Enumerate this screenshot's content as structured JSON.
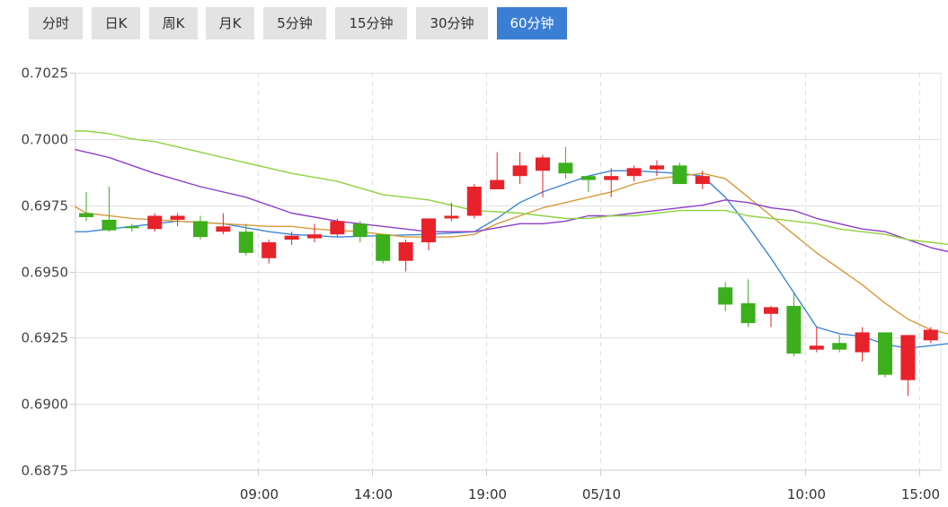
{
  "tabs": [
    {
      "label": "分时",
      "active": false
    },
    {
      "label": "日K",
      "active": false
    },
    {
      "label": "周K",
      "active": false
    },
    {
      "label": "月K",
      "active": false
    },
    {
      "label": "5分钟",
      "active": false
    },
    {
      "label": "15分钟",
      "active": false
    },
    {
      "label": "30分钟",
      "active": false
    },
    {
      "label": "60分钟",
      "active": true
    }
  ],
  "colors": {
    "up": "#e8222a",
    "down": "#3caf1c",
    "ma_blue": "#3f86d6",
    "ma_orange": "#d79a3c",
    "ma_purple": "#8b3fc8",
    "ma_green": "#8fd13f",
    "grid": "#e0e0e0",
    "active_tab": "#3a7fd4"
  },
  "chart_data": {
    "type": "candlestick",
    "title": "",
    "ylim": [
      0.6875,
      0.7025
    ],
    "yticks": [
      "0.7025",
      "0.7000",
      "0.6975",
      "0.6950",
      "0.6925",
      "0.6900",
      "0.6875"
    ],
    "xticks": [
      {
        "label": "09:00",
        "index": 7.5
      },
      {
        "label": "14:00",
        "index": 12.5
      },
      {
        "label": "19:00",
        "index": 17.5
      },
      {
        "label": "05/10",
        "index": 22.5
      },
      {
        "label": "10:00",
        "index": 31.5
      },
      {
        "label": "15:00",
        "index": 36.5
      }
    ],
    "candles": [
      {
        "o": 0.6972,
        "h": 0.698,
        "l": 0.6969,
        "c": 0.69705
      },
      {
        "o": 0.69695,
        "h": 0.6982,
        "l": 0.6965,
        "c": 0.69655
      },
      {
        "o": 0.6967,
        "h": 0.6968,
        "l": 0.6965,
        "c": 0.69665
      },
      {
        "o": 0.6966,
        "h": 0.6972,
        "l": 0.6965,
        "c": 0.6971
      },
      {
        "o": 0.69695,
        "h": 0.6972,
        "l": 0.6967,
        "c": 0.6971
      },
      {
        "o": 0.6969,
        "h": 0.6971,
        "l": 0.6962,
        "c": 0.6963
      },
      {
        "o": 0.6965,
        "h": 0.6972,
        "l": 0.6964,
        "c": 0.6967
      },
      {
        "o": 0.6965,
        "h": 0.6968,
        "l": 0.6956,
        "c": 0.6957
      },
      {
        "o": 0.6955,
        "h": 0.6962,
        "l": 0.6953,
        "c": 0.6961
      },
      {
        "o": 0.6962,
        "h": 0.6965,
        "l": 0.696,
        "c": 0.69635
      },
      {
        "o": 0.69625,
        "h": 0.6968,
        "l": 0.6961,
        "c": 0.6964
      },
      {
        "o": 0.6964,
        "h": 0.697,
        "l": 0.6963,
        "c": 0.6969
      },
      {
        "o": 0.6968,
        "h": 0.6969,
        "l": 0.6961,
        "c": 0.6963
      },
      {
        "o": 0.6964,
        "h": 0.6964,
        "l": 0.6953,
        "c": 0.6954
      },
      {
        "o": 0.6954,
        "h": 0.6962,
        "l": 0.695,
        "c": 0.6961
      },
      {
        "o": 0.6961,
        "h": 0.697,
        "l": 0.6958,
        "c": 0.697
      },
      {
        "o": 0.697,
        "h": 0.6976,
        "l": 0.6969,
        "c": 0.6971
      },
      {
        "o": 0.6971,
        "h": 0.6983,
        "l": 0.697,
        "c": 0.6982
      },
      {
        "o": 0.6981,
        "h": 0.6995,
        "l": 0.6981,
        "c": 0.69845
      },
      {
        "o": 0.6986,
        "h": 0.6995,
        "l": 0.6983,
        "c": 0.699
      },
      {
        "o": 0.6988,
        "h": 0.6994,
        "l": 0.6978,
        "c": 0.6993
      },
      {
        "o": 0.6991,
        "h": 0.6997,
        "l": 0.6985,
        "c": 0.6987
      },
      {
        "o": 0.6986,
        "h": 0.6986,
        "l": 0.698,
        "c": 0.69845
      },
      {
        "o": 0.69845,
        "h": 0.6989,
        "l": 0.6978,
        "c": 0.6986
      },
      {
        "o": 0.6986,
        "h": 0.699,
        "l": 0.6984,
        "c": 0.6989
      },
      {
        "o": 0.69885,
        "h": 0.6992,
        "l": 0.6986,
        "c": 0.699
      },
      {
        "o": 0.699,
        "h": 0.6991,
        "l": 0.6983,
        "c": 0.6983
      },
      {
        "o": 0.6983,
        "h": 0.6988,
        "l": 0.6981,
        "c": 0.6986
      },
      {
        "o": 0.6944,
        "h": 0.6946,
        "l": 0.6935,
        "c": 0.69375
      },
      {
        "o": 0.6938,
        "h": 0.6947,
        "l": 0.6929,
        "c": 0.69305
      },
      {
        "o": 0.6934,
        "h": 0.6937,
        "l": 0.6929,
        "c": 0.69365
      },
      {
        "o": 0.6937,
        "h": 0.6942,
        "l": 0.6918,
        "c": 0.6919
      },
      {
        "o": 0.69205,
        "h": 0.6929,
        "l": 0.69195,
        "c": 0.6922
      },
      {
        "o": 0.6923,
        "h": 0.6926,
        "l": 0.69195,
        "c": 0.69205
      },
      {
        "o": 0.69195,
        "h": 0.6929,
        "l": 0.6916,
        "c": 0.6927
      },
      {
        "o": 0.6927,
        "h": 0.6927,
        "l": 0.691,
        "c": 0.6911
      },
      {
        "o": 0.6909,
        "h": 0.6926,
        "l": 0.6903,
        "c": 0.6926
      },
      {
        "o": 0.6924,
        "h": 0.6929,
        "l": 0.6923,
        "c": 0.6928
      }
    ],
    "series": [
      {
        "color_key": "ma_blue",
        "points": [
          [
            -0.5,
            0.6965
          ],
          [
            0,
            0.6965
          ],
          [
            2,
            0.6967
          ],
          [
            4,
            0.6969
          ],
          [
            6,
            0.6968
          ],
          [
            8,
            0.6965
          ],
          [
            9,
            0.6964
          ],
          [
            11,
            0.6963
          ],
          [
            13,
            0.69635
          ],
          [
            15,
            0.6964
          ],
          [
            17,
            0.6965
          ],
          [
            18,
            0.697
          ],
          [
            19,
            0.6976
          ],
          [
            20,
            0.698
          ],
          [
            21,
            0.6983
          ],
          [
            22,
            0.6986
          ],
          [
            23,
            0.6988
          ],
          [
            24,
            0.6988
          ],
          [
            25,
            0.69875
          ],
          [
            26,
            0.6987
          ],
          [
            27,
            0.6986
          ],
          [
            28,
            0.6978
          ],
          [
            29,
            0.6967
          ],
          [
            30,
            0.6955
          ],
          [
            31,
            0.6942
          ],
          [
            32,
            0.6929
          ],
          [
            33,
            0.69265
          ],
          [
            34,
            0.69255
          ],
          [
            35,
            0.69225
          ],
          [
            36,
            0.6921
          ],
          [
            37,
            0.6922
          ],
          [
            38,
            0.6923
          ]
        ]
      },
      {
        "color_key": "ma_orange",
        "points": [
          [
            -0.5,
            0.69745
          ],
          [
            0,
            0.6972
          ],
          [
            2,
            0.697
          ],
          [
            4,
            0.6969
          ],
          [
            6,
            0.6968
          ],
          [
            8,
            0.6967
          ],
          [
            9,
            0.6967
          ],
          [
            10,
            0.6966
          ],
          [
            12,
            0.6965
          ],
          [
            14,
            0.6963
          ],
          [
            16,
            0.6963
          ],
          [
            17,
            0.6964
          ],
          [
            18,
            0.6968
          ],
          [
            19,
            0.6971
          ],
          [
            20,
            0.6974
          ],
          [
            21,
            0.6976
          ],
          [
            22,
            0.6978
          ],
          [
            23,
            0.698
          ],
          [
            24,
            0.6983
          ],
          [
            25,
            0.6985
          ],
          [
            26,
            0.6986
          ],
          [
            27,
            0.6987
          ],
          [
            28,
            0.6985
          ],
          [
            29,
            0.6978
          ],
          [
            30,
            0.6971
          ],
          [
            31,
            0.6964
          ],
          [
            32,
            0.6957
          ],
          [
            33,
            0.6951
          ],
          [
            34,
            0.6945
          ],
          [
            35,
            0.6938
          ],
          [
            36,
            0.6932
          ],
          [
            37,
            0.6928
          ],
          [
            38,
            0.6926
          ]
        ]
      },
      {
        "color_key": "ma_purple",
        "points": [
          [
            -0.5,
            0.6996
          ],
          [
            0,
            0.6995
          ],
          [
            1,
            0.6993
          ],
          [
            3,
            0.6987
          ],
          [
            5,
            0.6982
          ],
          [
            7,
            0.6978
          ],
          [
            9,
            0.6972
          ],
          [
            11,
            0.6969
          ],
          [
            13,
            0.6967
          ],
          [
            15,
            0.6965
          ],
          [
            17,
            0.6965
          ],
          [
            18,
            0.69665
          ],
          [
            19,
            0.6968
          ],
          [
            20,
            0.6968
          ],
          [
            21,
            0.6969
          ],
          [
            22,
            0.6971
          ],
          [
            23,
            0.6971
          ],
          [
            24,
            0.6972
          ],
          [
            25,
            0.6973
          ],
          [
            26,
            0.6974
          ],
          [
            27,
            0.6975
          ],
          [
            28,
            0.6977
          ],
          [
            29,
            0.6976
          ],
          [
            30,
            0.6974
          ],
          [
            31,
            0.6973
          ],
          [
            32,
            0.697
          ],
          [
            33,
            0.6968
          ],
          [
            34,
            0.6966
          ],
          [
            35,
            0.6965
          ],
          [
            36,
            0.6962
          ],
          [
            37,
            0.6959
          ],
          [
            38,
            0.6957
          ]
        ]
      },
      {
        "color_key": "ma_green",
        "points": [
          [
            -0.5,
            0.7003
          ],
          [
            0,
            0.7003
          ],
          [
            1,
            0.7002
          ],
          [
            2,
            0.7
          ],
          [
            3,
            0.6999
          ],
          [
            5,
            0.6995
          ],
          [
            7,
            0.6991
          ],
          [
            9,
            0.6987
          ],
          [
            11,
            0.6984
          ],
          [
            13,
            0.6979
          ],
          [
            15,
            0.6977
          ],
          [
            17,
            0.6973
          ],
          [
            19,
            0.6972
          ],
          [
            20,
            0.6971
          ],
          [
            21,
            0.697
          ],
          [
            22,
            0.697
          ],
          [
            23,
            0.6971
          ],
          [
            24,
            0.6971
          ],
          [
            26,
            0.6973
          ],
          [
            27,
            0.6973
          ],
          [
            28,
            0.6973
          ],
          [
            29,
            0.6971
          ],
          [
            30,
            0.697
          ],
          [
            31,
            0.6969
          ],
          [
            32,
            0.6968
          ],
          [
            33,
            0.6966
          ],
          [
            34,
            0.6965
          ],
          [
            35,
            0.6964
          ],
          [
            36,
            0.6962
          ],
          [
            37,
            0.6961
          ],
          [
            38,
            0.696
          ]
        ]
      }
    ]
  }
}
